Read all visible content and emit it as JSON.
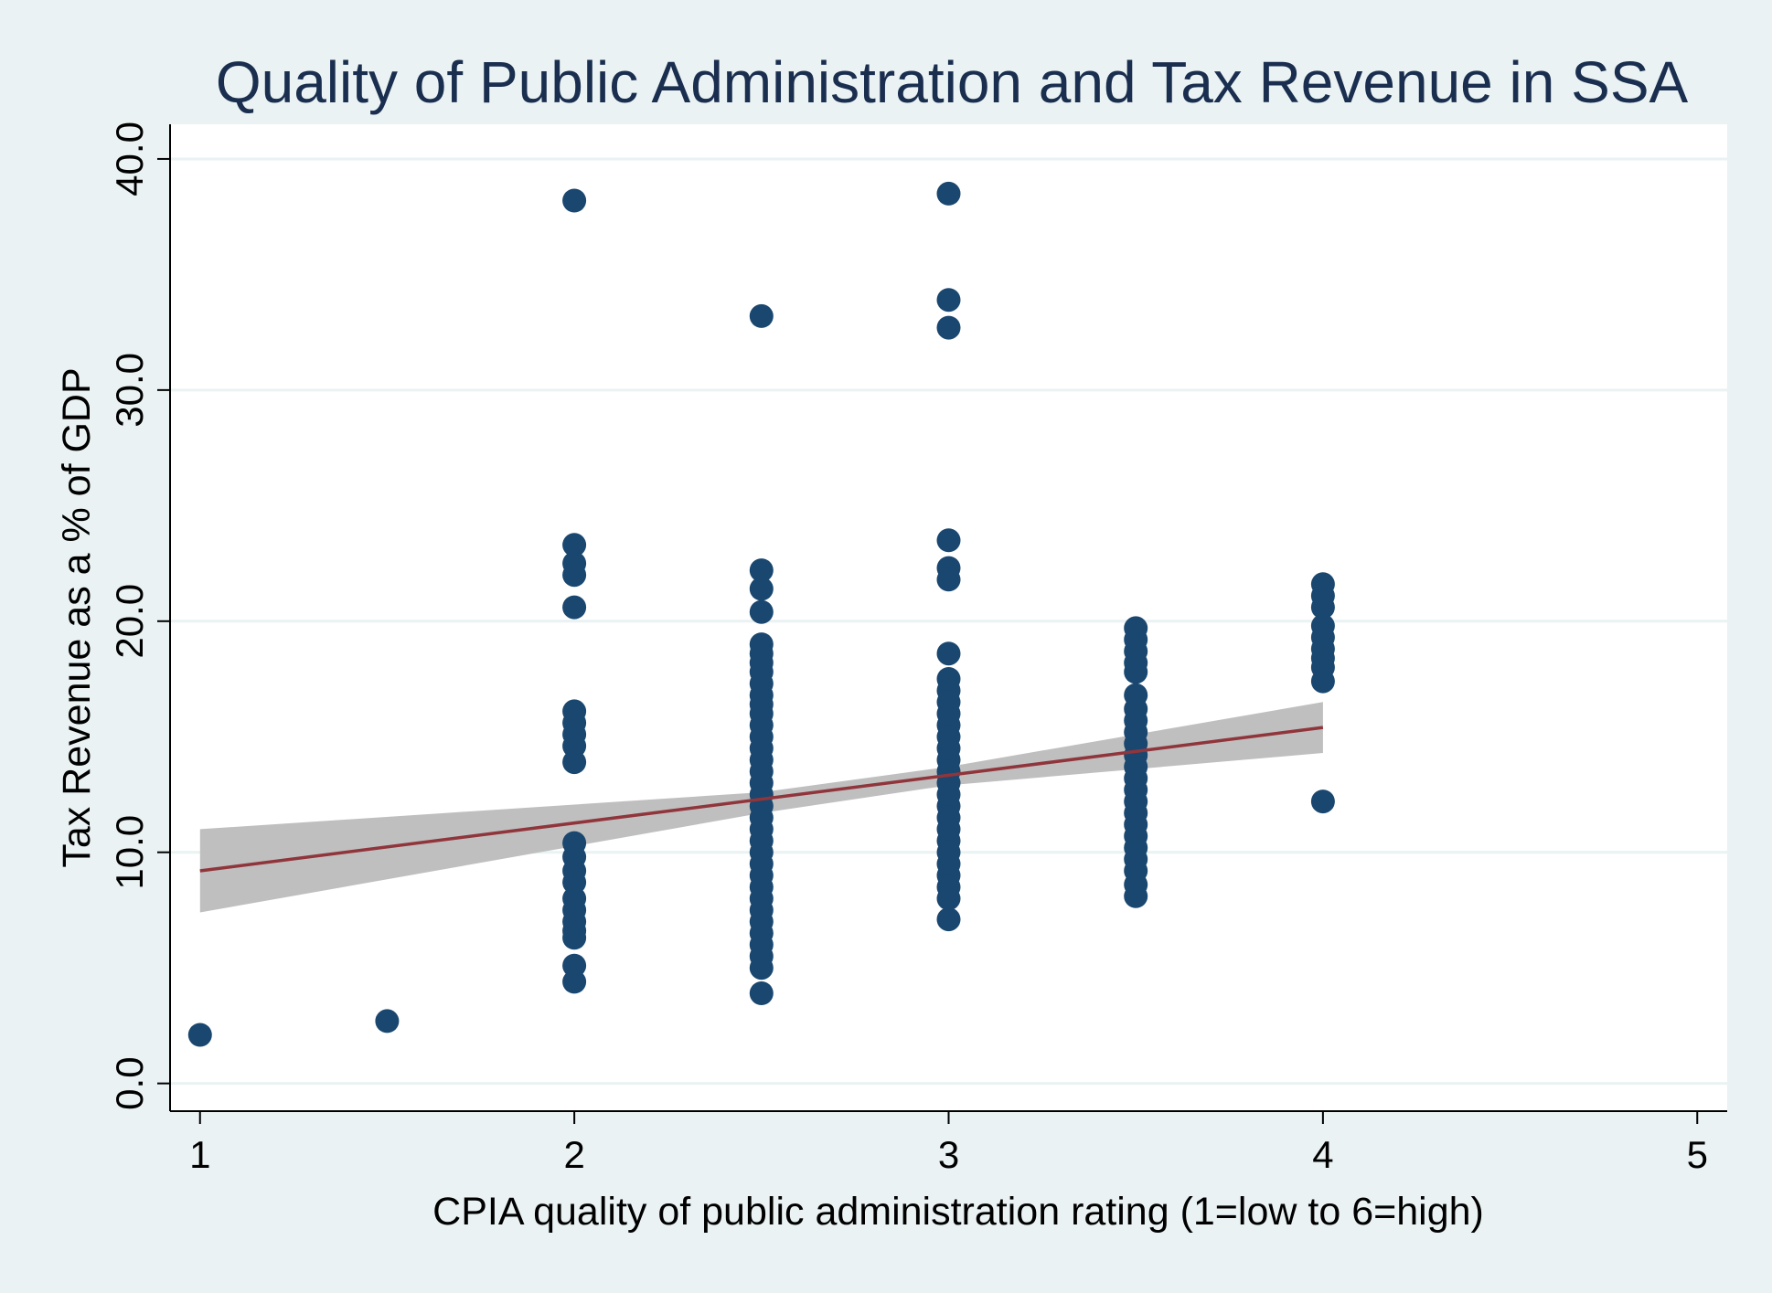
{
  "colors": {
    "background": "#eaf2f3",
    "plot_background": "#ffffff",
    "gridline": "#eaf2f3",
    "title": "#1a2e4f",
    "axis_text": "#000000",
    "points": "#1a476f",
    "fit_line": "#90353b",
    "ci_band": "#bfbfbf"
  },
  "chart_data": {
    "type": "scatter",
    "title": "Quality of Public Administration and Tax Revenue in SSA",
    "xlabel": "CPIA quality of public administration rating (1=low to 6=high)",
    "ylabel": "Tax Revenue as a % of GDP",
    "xlim": [
      0.92,
      5.08
    ],
    "ylim": [
      -1.2,
      41.5
    ],
    "x_ticks": [
      1,
      2,
      3,
      4,
      5
    ],
    "x_tick_labels": [
      "1",
      "2",
      "3",
      "4",
      "5"
    ],
    "y_ticks": [
      0,
      10,
      20,
      30,
      40
    ],
    "y_tick_labels": [
      "0.0",
      "10.0",
      "20.0",
      "30.0",
      "40.0"
    ],
    "grid": true,
    "legend": "none",
    "series": [
      {
        "marker": "circle",
        "points": [
          [
            1.0,
            2.1
          ],
          [
            1.5,
            2.7
          ],
          [
            2.0,
            38.2
          ],
          [
            2.0,
            23.3
          ],
          [
            2.0,
            22.5
          ],
          [
            2.0,
            22.0
          ],
          [
            2.0,
            20.6
          ],
          [
            2.0,
            16.1
          ],
          [
            2.0,
            15.6
          ],
          [
            2.0,
            15.1
          ],
          [
            2.0,
            14.6
          ],
          [
            2.0,
            13.9
          ],
          [
            2.0,
            10.4
          ],
          [
            2.0,
            9.8
          ],
          [
            2.0,
            9.2
          ],
          [
            2.0,
            8.7
          ],
          [
            2.0,
            8.0
          ],
          [
            2.0,
            7.5
          ],
          [
            2.0,
            7.0
          ],
          [
            2.0,
            6.6
          ],
          [
            2.0,
            6.3
          ],
          [
            2.0,
            5.1
          ],
          [
            2.0,
            4.4
          ],
          [
            2.5,
            33.2
          ],
          [
            2.5,
            22.2
          ],
          [
            2.5,
            21.4
          ],
          [
            2.5,
            20.4
          ],
          [
            2.5,
            19.0
          ],
          [
            2.5,
            18.6
          ],
          [
            2.5,
            18.2
          ],
          [
            2.5,
            17.8
          ],
          [
            2.5,
            17.3
          ],
          [
            2.5,
            16.8
          ],
          [
            2.5,
            16.4
          ],
          [
            2.5,
            16.0
          ],
          [
            2.5,
            15.5
          ],
          [
            2.5,
            15.0
          ],
          [
            2.5,
            14.5
          ],
          [
            2.5,
            14.0
          ],
          [
            2.5,
            13.5
          ],
          [
            2.5,
            13.0
          ],
          [
            2.5,
            12.5
          ],
          [
            2.5,
            12.0
          ],
          [
            2.5,
            11.5
          ],
          [
            2.5,
            11.0
          ],
          [
            2.5,
            10.5
          ],
          [
            2.5,
            10.0
          ],
          [
            2.5,
            9.5
          ],
          [
            2.5,
            9.0
          ],
          [
            2.5,
            8.5
          ],
          [
            2.5,
            8.0
          ],
          [
            2.5,
            7.5
          ],
          [
            2.5,
            7.0
          ],
          [
            2.5,
            6.5
          ],
          [
            2.5,
            6.0
          ],
          [
            2.5,
            5.5
          ],
          [
            2.5,
            5.0
          ],
          [
            2.5,
            3.9
          ],
          [
            3.0,
            38.5
          ],
          [
            3.0,
            33.9
          ],
          [
            3.0,
            32.7
          ],
          [
            3.0,
            23.5
          ],
          [
            3.0,
            22.3
          ],
          [
            3.0,
            21.8
          ],
          [
            3.0,
            18.6
          ],
          [
            3.0,
            17.5
          ],
          [
            3.0,
            17.0
          ],
          [
            3.0,
            16.5
          ],
          [
            3.0,
            16.0
          ],
          [
            3.0,
            15.5
          ],
          [
            3.0,
            15.0
          ],
          [
            3.0,
            14.5
          ],
          [
            3.0,
            14.0
          ],
          [
            3.0,
            13.5
          ],
          [
            3.0,
            13.0
          ],
          [
            3.0,
            12.5
          ],
          [
            3.0,
            12.0
          ],
          [
            3.0,
            11.5
          ],
          [
            3.0,
            11.0
          ],
          [
            3.0,
            10.5
          ],
          [
            3.0,
            10.0
          ],
          [
            3.0,
            9.5
          ],
          [
            3.0,
            9.0
          ],
          [
            3.0,
            8.5
          ],
          [
            3.0,
            8.0
          ],
          [
            3.0,
            7.1
          ],
          [
            3.5,
            19.7
          ],
          [
            3.5,
            19.2
          ],
          [
            3.5,
            18.7
          ],
          [
            3.5,
            18.2
          ],
          [
            3.5,
            17.8
          ],
          [
            3.5,
            16.8
          ],
          [
            3.5,
            16.2
          ],
          [
            3.5,
            15.7
          ],
          [
            3.5,
            15.2
          ],
          [
            3.5,
            14.7
          ],
          [
            3.5,
            14.2
          ],
          [
            3.5,
            13.7
          ],
          [
            3.5,
            13.2
          ],
          [
            3.5,
            12.7
          ],
          [
            3.5,
            12.2
          ],
          [
            3.5,
            11.7
          ],
          [
            3.5,
            11.2
          ],
          [
            3.5,
            10.7
          ],
          [
            3.5,
            10.2
          ],
          [
            3.5,
            9.7
          ],
          [
            3.5,
            9.2
          ],
          [
            3.5,
            8.6
          ],
          [
            3.5,
            8.1
          ],
          [
            4.0,
            21.6
          ],
          [
            4.0,
            21.1
          ],
          [
            4.0,
            20.6
          ],
          [
            4.0,
            19.8
          ],
          [
            4.0,
            19.3
          ],
          [
            4.0,
            18.8
          ],
          [
            4.0,
            18.4
          ],
          [
            4.0,
            18.0
          ],
          [
            4.0,
            17.4
          ],
          [
            4.0,
            12.2
          ]
        ]
      }
    ],
    "fit": {
      "type": "linear",
      "x_range": [
        1,
        4
      ],
      "line": [
        [
          1,
          9.2
        ],
        [
          4,
          15.4
        ]
      ],
      "ci_upper": [
        [
          1,
          11.0
        ],
        [
          2.5,
          12.6
        ],
        [
          3,
          13.7
        ],
        [
          4,
          16.5
        ]
      ],
      "ci_lower": [
        [
          1,
          7.4
        ],
        [
          2.5,
          11.7
        ],
        [
          3,
          12.9
        ],
        [
          4,
          14.3
        ]
      ]
    }
  }
}
